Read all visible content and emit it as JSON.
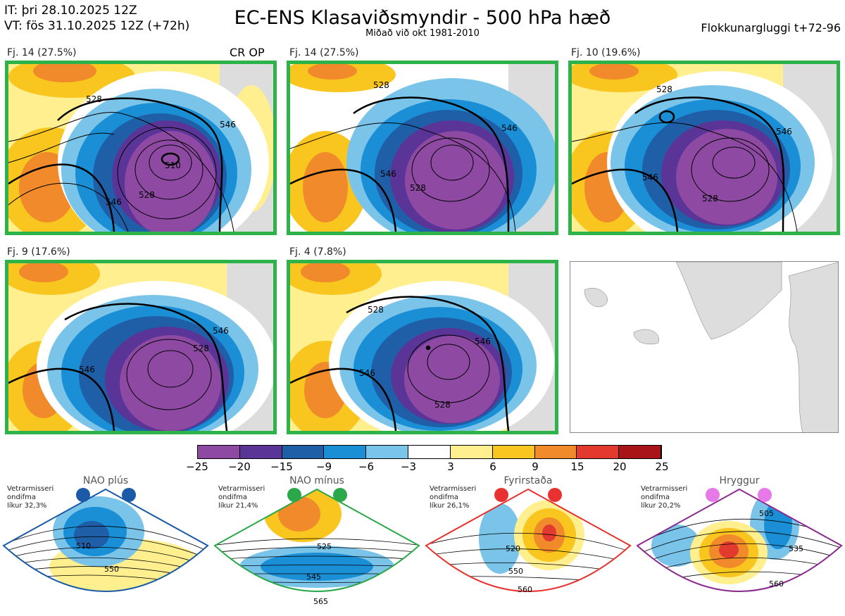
{
  "header": {
    "it_line": "IT: þri 28.10.2025 12Z",
    "vt_line": "VT: fös 31.10.2025 12Z  (+72h)",
    "title": "EC-ENS Klasaviðsmyndir - 500 hPa hæð",
    "subtitle": "Miðað við okt 1981-2010",
    "window": "Flokkunargluggi t+72-96"
  },
  "panels": [
    {
      "label": "Fj. 14 (27.5%)",
      "badge": "CR OP",
      "labels": [
        "510",
        "528",
        "546",
        "528",
        "546"
      ]
    },
    {
      "label": "Fj. 14 (27.5%)",
      "badge": "",
      "labels": [
        "528",
        "546",
        "528",
        "546"
      ]
    },
    {
      "label": "Fj. 10 (19.6%)",
      "badge": "",
      "labels": [
        "528",
        "546",
        "528",
        "546"
      ]
    },
    {
      "label": "Fj. 9 (17.6%)",
      "badge": "",
      "labels": [
        "546",
        "528",
        "546"
      ]
    },
    {
      "label": "Fj. 4 (7.8%)",
      "badge": "",
      "labels": [
        "528",
        "546",
        "528",
        "546"
      ]
    }
  ],
  "colorbar": {
    "ticks": [
      "−25",
      "−20",
      "−15",
      "−9",
      "−6",
      "−3",
      "3",
      "6",
      "9",
      "15",
      "20",
      "25"
    ],
    "colors": [
      "#8e4aa3",
      "#5a3597",
      "#1f5fa8",
      "#1a8fd6",
      "#7ac4ea",
      "#ffffff",
      "#ffef8f",
      "#f9c51f",
      "#f08a2b",
      "#e33a2f",
      "#a81418"
    ]
  },
  "regimes": [
    {
      "title": "NAO plús",
      "note": [
        "Vetrarmisseri",
        "ondifma",
        "líkur 32,3%"
      ],
      "color": "#1b5aa6",
      "labels": [
        "510",
        "550"
      ]
    },
    {
      "title": "NAO mínus",
      "note": [
        "Vetrarmisseri",
        "ondifma",
        "líkur 21,4%"
      ],
      "color": "#2aa84a",
      "labels": [
        "525",
        "545",
        "565"
      ]
    },
    {
      "title": "Fyrirstaða",
      "note": [
        "Vetrarmisseri",
        "ondifma",
        "líkur 26,1%"
      ],
      "color": "#e8322f",
      "labels": [
        "520",
        "550",
        "560"
      ]
    },
    {
      "title": "Hryggur",
      "note": [
        "Vetrarmisseri",
        "ondifma",
        "líkur 20,2%"
      ],
      "color": "#8a2a8e",
      "labels": [
        "505",
        "535",
        "560"
      ]
    }
  ]
}
